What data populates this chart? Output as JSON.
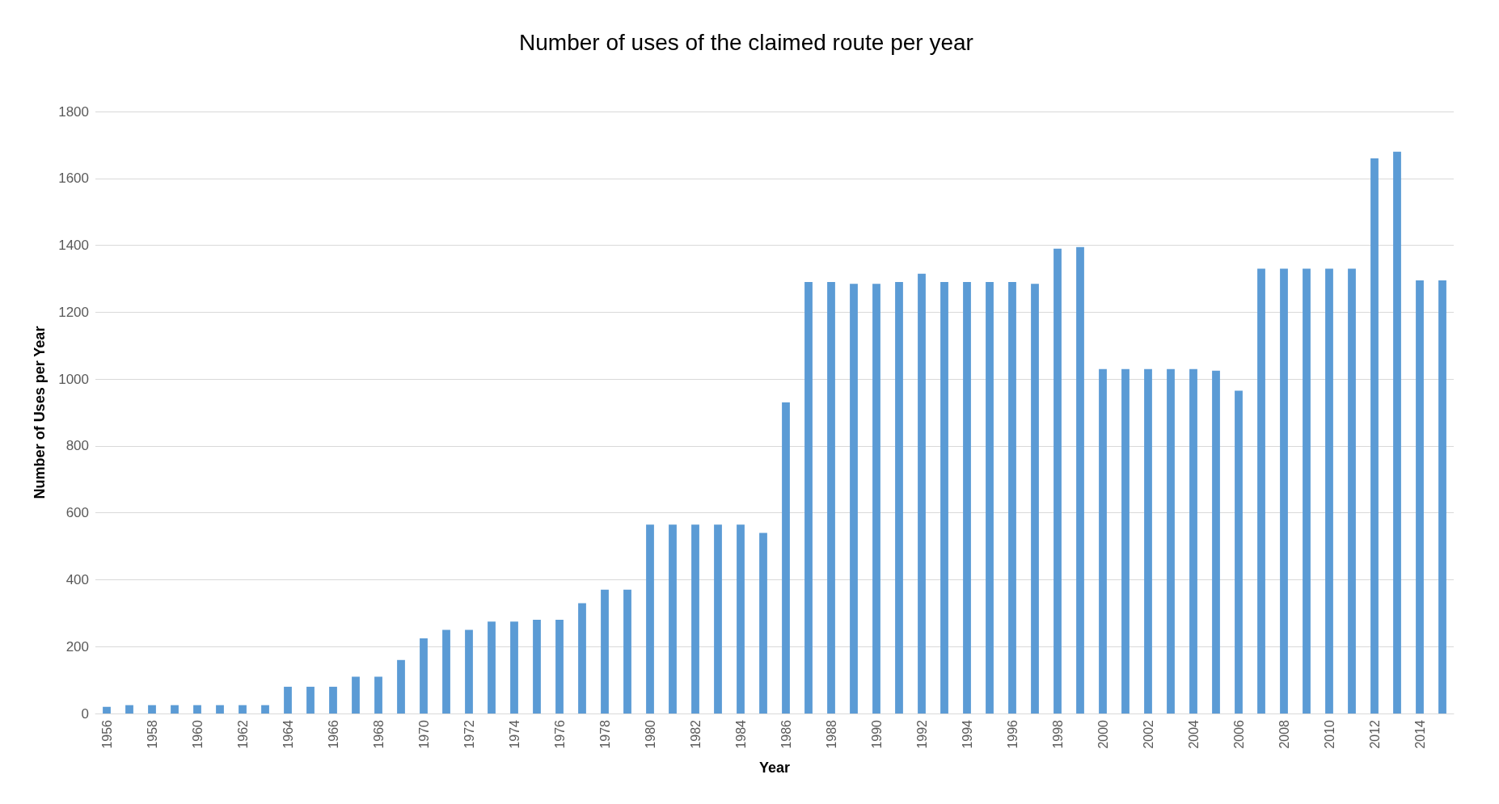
{
  "chart_data": {
    "type": "bar",
    "title": "Number of uses of the claimed route per year",
    "xlabel": "Year",
    "ylabel": "Number of Uses per Year",
    "categories": [
      "1956",
      null,
      "1958",
      null,
      "1960",
      null,
      "1962",
      null,
      "1964",
      null,
      "1966",
      null,
      "1968",
      null,
      "1970",
      null,
      "1972",
      null,
      "1974",
      null,
      "1976",
      null,
      "1978",
      null,
      "1980",
      null,
      "1982",
      null,
      "1984",
      null,
      "1986",
      null,
      "1988",
      null,
      "1990",
      null,
      "1992",
      null,
      "1994",
      null,
      "1996",
      null,
      "1998",
      null,
      "2000",
      null,
      "2002",
      null,
      "2004",
      null,
      "2006",
      null,
      "2008",
      null,
      "2010",
      null,
      "2012",
      null,
      "2014",
      null
    ],
    "values": [
      20,
      25,
      25,
      25,
      25,
      25,
      25,
      25,
      80,
      80,
      80,
      110,
      110,
      160,
      225,
      250,
      250,
      275,
      275,
      280,
      280,
      330,
      370,
      370,
      565,
      565,
      565,
      565,
      565,
      540,
      930,
      1290,
      1290,
      1285,
      1285,
      1290,
      1315,
      1290,
      1290,
      1290,
      1290,
      1285,
      1390,
      1395,
      1030,
      1030,
      1030,
      1030,
      1030,
      1025,
      965,
      1330,
      1330,
      1330,
      1330,
      1330,
      1660,
      1680,
      1295,
      1295
    ],
    "color": "#5b9bd5",
    "ylim": [
      0,
      1800
    ],
    "yticks": [
      0,
      200,
      400,
      600,
      800,
      1000,
      1200,
      1400,
      1600,
      1800
    ],
    "grid": "y"
  }
}
